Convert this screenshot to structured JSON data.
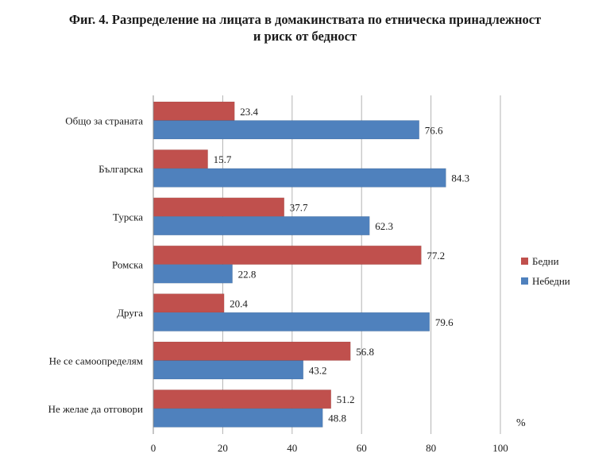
{
  "chart_data": {
    "type": "bar",
    "orientation": "horizontal",
    "title_lines": [
      "Фиг. 4. Разпределение на лицата в домакинствата по етническа принадлежност",
      "и риск от бедност"
    ],
    "categories": [
      "Общо за страната",
      "Българска",
      "Турска",
      "Ромска",
      "Друга",
      "Не се самоопределям",
      "Не желае да отговори"
    ],
    "series": [
      {
        "name": "Бедни",
        "color": "#c0504d",
        "values": [
          23.4,
          15.7,
          37.7,
          77.2,
          20.4,
          56.8,
          51.2
        ]
      },
      {
        "name": "Небедни",
        "color": "#4f81bd",
        "values": [
          76.6,
          84.3,
          62.3,
          22.8,
          79.6,
          43.2,
          48.8
        ]
      }
    ],
    "xlim": [
      0,
      100
    ],
    "xticks": [
      0,
      20,
      40,
      60,
      80,
      100
    ],
    "xlabel": "%",
    "grid": true,
    "legend_position": "right"
  }
}
